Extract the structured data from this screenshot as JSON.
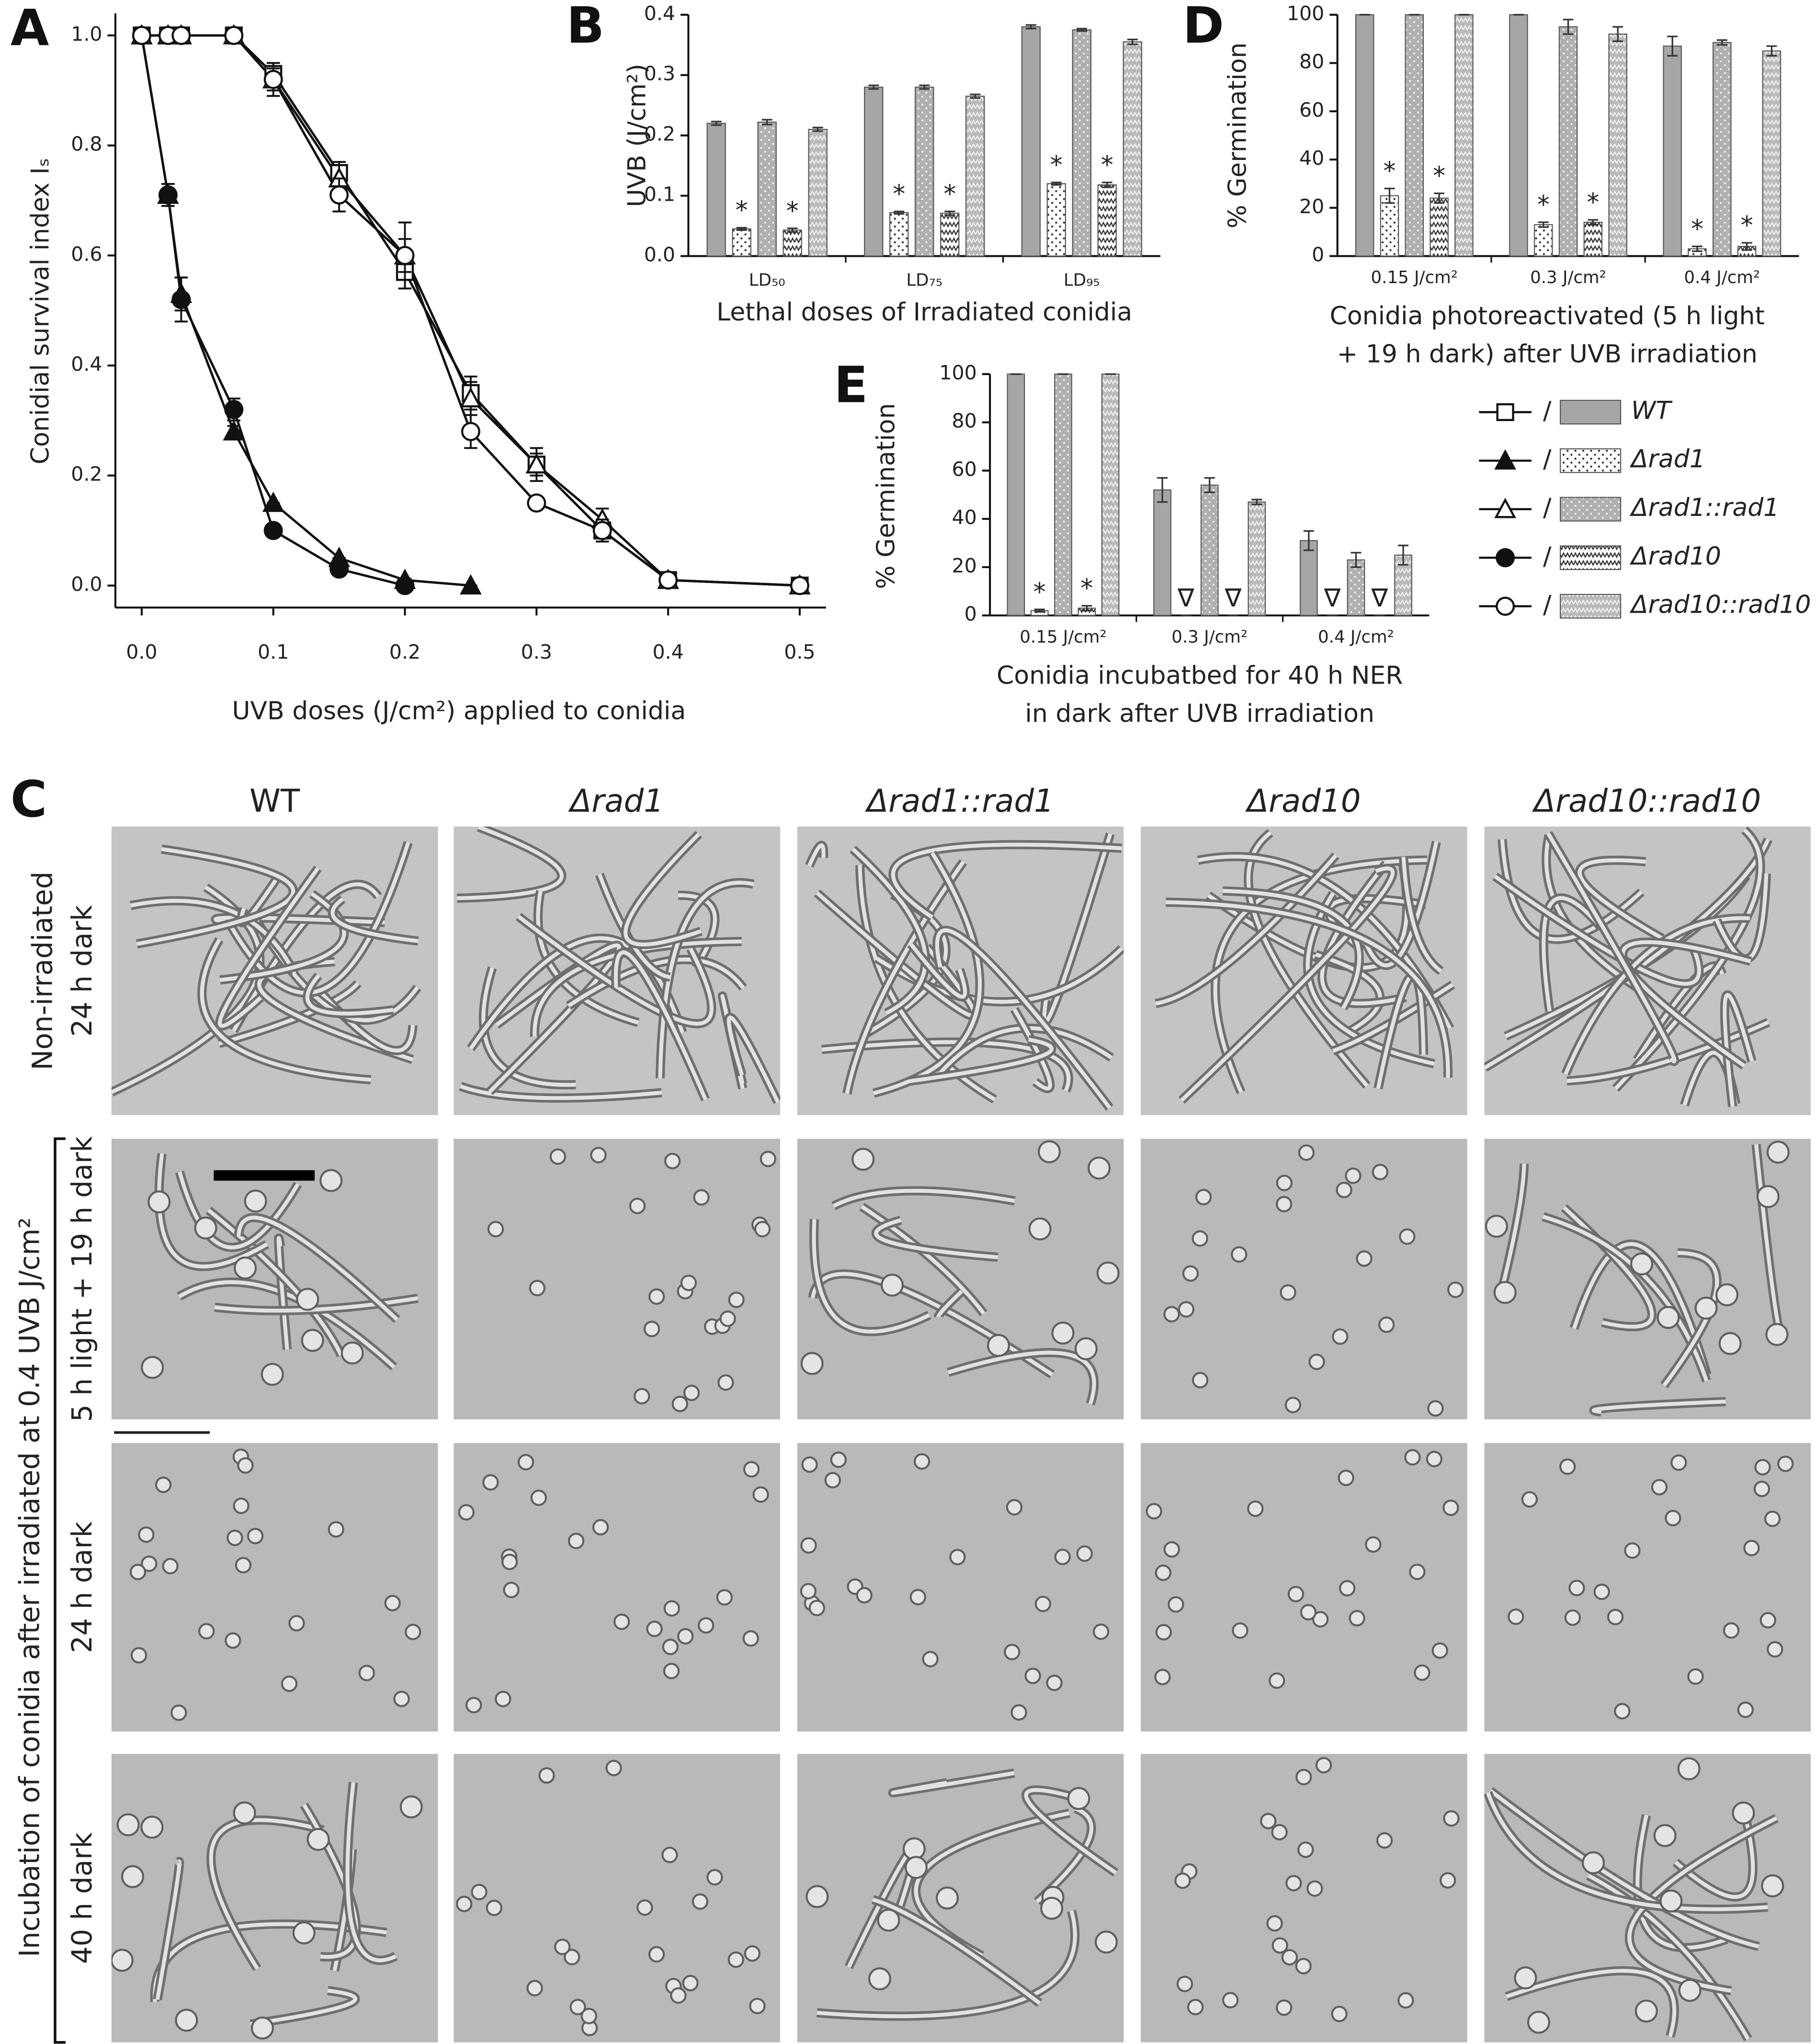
{
  "chart_data": [
    {
      "panel": "A",
      "type": "line",
      "ylabel": "Conidial survival index Iₛ",
      "xlabel": "UVB doses (J/cm²) applied to conidia",
      "xlim": [
        -0.02,
        0.52
      ],
      "ylim": [
        -0.04,
        1.04
      ],
      "xticks": [
        {
          "value": 0,
          "label": "0.0"
        },
        {
          "value": 0.1,
          "label": "0.1"
        },
        {
          "value": 0.2,
          "label": "0.2"
        },
        {
          "value": 0.3,
          "label": "0.3"
        },
        {
          "value": 0.4,
          "label": "0.4"
        },
        {
          "value": 0.5,
          "label": "0.5"
        }
      ],
      "yticks": [
        {
          "value": 0,
          "label": "0.0"
        },
        {
          "value": 0.2,
          "label": "0.2"
        },
        {
          "value": 0.4,
          "label": "0.4"
        },
        {
          "value": 0.6,
          "label": "0.6"
        },
        {
          "value": 0.8,
          "label": "0.8"
        },
        {
          "value": 1,
          "label": "1.0"
        }
      ],
      "series": [
        {
          "name": "WT",
          "marker": "open-square",
          "x": [
            0,
            0.02,
            0.03,
            0.07,
            0.1,
            0.15,
            0.2,
            0.25,
            0.3,
            0.35,
            0.4,
            0.5
          ],
          "values": [
            1,
            1,
            1,
            1,
            0.93,
            0.75,
            0.57,
            0.35,
            0.22,
            0.1,
            0.01,
            0
          ],
          "errors": [
            0,
            0,
            0,
            0,
            0.02,
            0.02,
            0.03,
            0.03,
            0.02,
            0.02,
            0.01,
            0
          ]
        },
        {
          "name": "Δrad1",
          "marker": "filled-triangle",
          "x": [
            0,
            0.02,
            0.03,
            0.07,
            0.1,
            0.15,
            0.2,
            0.25
          ],
          "values": [
            1,
            0.71,
            0.53,
            0.28,
            0.15,
            0.05,
            0.01,
            0
          ],
          "errors": [
            0,
            0.02,
            0.03,
            0.01,
            0,
            0,
            0,
            0
          ]
        },
        {
          "name": "Δrad1::rad1",
          "marker": "open-triangle",
          "x": [
            0,
            0.02,
            0.03,
            0.07,
            0.1,
            0.15,
            0.2,
            0.25,
            0.3,
            0.35,
            0.4,
            0.5
          ],
          "values": [
            1,
            1,
            1,
            1,
            0.92,
            0.74,
            0.6,
            0.34,
            0.22,
            0.12,
            0.01,
            0
          ],
          "errors": [
            0,
            0,
            0,
            0,
            0.03,
            0.03,
            0.06,
            0.03,
            0.03,
            0.02,
            0.01,
            0
          ]
        },
        {
          "name": "Δrad10",
          "marker": "filled-circle",
          "x": [
            0,
            0.02,
            0.03,
            0.07,
            0.1,
            0.15,
            0.2
          ],
          "values": [
            1,
            0.71,
            0.52,
            0.32,
            0.1,
            0.03,
            0
          ],
          "errors": [
            0,
            0.02,
            0.04,
            0.02,
            0,
            0,
            0
          ]
        },
        {
          "name": "Δrad10::rad10",
          "marker": "open-circle",
          "x": [
            0,
            0.02,
            0.03,
            0.07,
            0.1,
            0.15,
            0.2,
            0.25,
            0.3,
            0.35,
            0.4,
            0.5
          ],
          "values": [
            1,
            1,
            1,
            1,
            0.92,
            0.71,
            0.6,
            0.28,
            0.15,
            0.1,
            0.01,
            0
          ],
          "errors": [
            0,
            0,
            0,
            0,
            0.02,
            0.03,
            0.03,
            0.03,
            0,
            0.02,
            0.01,
            0
          ]
        }
      ]
    },
    {
      "panel": "B",
      "type": "bar",
      "ylabel": "UVB (J/cm²)",
      "xlabel": [
        "Lethal doses of Irradiated conidia"
      ],
      "categories": [
        "LD₅₀",
        "LD₇₅",
        "LD₉₅"
      ],
      "ylim": [
        0,
        0.4
      ],
      "yticks": [
        {
          "value": 0,
          "label": "0.0"
        },
        {
          "value": 0.1,
          "label": "0.1"
        },
        {
          "value": 0.2,
          "label": "0.2"
        },
        {
          "value": 0.3,
          "label": "0.3"
        },
        {
          "value": 0.4,
          "label": "0.4"
        }
      ],
      "series": [
        {
          "color": "#a6a6a6",
          "pattern": "solid",
          "values": [
            0.22,
            0.28,
            0.38
          ],
          "errors": [
            0.003,
            0.003,
            0.003
          ]
        },
        {
          "color": "#ffffff",
          "pattern": "dots",
          "values": [
            0.045,
            0.072,
            0.12
          ],
          "errors": [
            0.002,
            0.002,
            0.002
          ]
        },
        {
          "color": "#b0b0b0",
          "pattern": "light-dots",
          "values": [
            0.222,
            0.28,
            0.375
          ],
          "errors": [
            0.004,
            0.003,
            0.002
          ]
        },
        {
          "color": "#ffffff",
          "pattern": "zigzag",
          "values": [
            0.043,
            0.071,
            0.118
          ],
          "errors": [
            0.003,
            0.003,
            0.004
          ]
        },
        {
          "color": "#b8b8b8",
          "pattern": "light-zigzag",
          "values": [
            0.21,
            0.265,
            0.355
          ],
          "errors": [
            0.003,
            0.003,
            0.004
          ]
        }
      ],
      "annotations": [
        {
          "text": "*",
          "series": 1,
          "category": 0
        },
        {
          "text": "*",
          "series": 3,
          "category": 0
        },
        {
          "text": "*",
          "series": 1,
          "category": 1
        },
        {
          "text": "*",
          "series": 3,
          "category": 1
        },
        {
          "text": "*",
          "series": 1,
          "category": 2
        },
        {
          "text": "*",
          "series": 3,
          "category": 2
        }
      ]
    },
    {
      "panel": "D",
      "type": "bar",
      "ylabel": "% Germination",
      "xlabel": [
        "Conidia photoreactivated (5 h light",
        "+ 19 h dark) after UVB irradiation"
      ],
      "categories": [
        "0.15 J/cm²",
        "0.3 J/cm²",
        "0.4 J/cm²"
      ],
      "ylim": [
        0,
        100
      ],
      "yticks": [
        0,
        20,
        40,
        60,
        80,
        100
      ],
      "series": [
        {
          "color": "#a6a6a6",
          "pattern": "solid",
          "values": [
            100,
            100,
            87
          ],
          "errors": [
            0,
            0,
            4
          ]
        },
        {
          "color": "#ffffff",
          "pattern": "dots",
          "values": [
            25,
            13,
            3
          ],
          "errors": [
            3,
            1,
            1
          ]
        },
        {
          "color": "#b0b0b0",
          "pattern": "light-dots",
          "values": [
            100,
            95,
            88.5
          ],
          "errors": [
            0,
            3,
            1
          ]
        },
        {
          "color": "#ffffff",
          "pattern": "zigzag",
          "values": [
            24,
            14,
            4
          ],
          "errors": [
            2,
            1,
            1.5
          ]
        },
        {
          "color": "#b8b8b8",
          "pattern": "light-zigzag",
          "values": [
            100,
            92,
            85
          ],
          "errors": [
            0,
            3,
            2
          ]
        }
      ],
      "annotations": [
        {
          "text": "*",
          "series": 1,
          "category": 0
        },
        {
          "text": "*",
          "series": 3,
          "category": 0
        },
        {
          "text": "*",
          "series": 1,
          "category": 1
        },
        {
          "text": "*",
          "series": 3,
          "category": 1
        },
        {
          "text": "*",
          "series": 1,
          "category": 2
        },
        {
          "text": "*",
          "series": 3,
          "category": 2
        }
      ]
    },
    {
      "panel": "E",
      "type": "bar",
      "ylabel": "% Germination",
      "xlabel": [
        "Conidia incubatbed for 40 h NER",
        "in dark after UVB  irradiation"
      ],
      "categories": [
        "0.15 J/cm²",
        "0.3 J/cm²",
        "0.4 J/cm²"
      ],
      "ylim": [
        0,
        100
      ],
      "yticks": [
        0,
        20,
        40,
        60,
        80,
        100
      ],
      "series": [
        {
          "color": "#a6a6a6",
          "pattern": "solid",
          "values": [
            100,
            52,
            31
          ],
          "errors": [
            0,
            5,
            4
          ]
        },
        {
          "color": "#ffffff",
          "pattern": "dots",
          "values": [
            2,
            0,
            0
          ],
          "errors": [
            0.5,
            0,
            0
          ]
        },
        {
          "color": "#b0b0b0",
          "pattern": "light-dots",
          "values": [
            100,
            54,
            23
          ],
          "errors": [
            0,
            3,
            3
          ]
        },
        {
          "color": "#ffffff",
          "pattern": "zigzag",
          "values": [
            3,
            0,
            0
          ],
          "errors": [
            1,
            0,
            0
          ]
        },
        {
          "color": "#b8b8b8",
          "pattern": "light-zigzag",
          "values": [
            100,
            47,
            25
          ],
          "errors": [
            0,
            1,
            4
          ]
        }
      ],
      "annotations": [
        {
          "text": "*",
          "series": 1,
          "category": 0
        },
        {
          "text": "*",
          "series": 3,
          "category": 0
        },
        {
          "text": "∇",
          "series": 1,
          "category": 1
        },
        {
          "text": "∇",
          "series": 3,
          "category": 1
        },
        {
          "text": "∇",
          "series": 1,
          "category": 2
        },
        {
          "text": "∇",
          "series": 3,
          "category": 2
        }
      ]
    }
  ],
  "legend": {
    "separator": "/"
  },
  "panel_c": {
    "panel": "C",
    "columns": [
      "WT",
      "Δrad1",
      "Δrad1::rad1",
      "Δrad10",
      "Δrad10::rad10"
    ],
    "rows": [
      [
        "Non-irradiated",
        "24 h dark"
      ],
      [
        "5 h light + 19 h dark"
      ],
      [
        "24 h dark"
      ],
      [
        "40 h dark"
      ]
    ],
    "group_label": "Incubation of conidia after irradiated at  0.4 UVB J/cm²"
  }
}
